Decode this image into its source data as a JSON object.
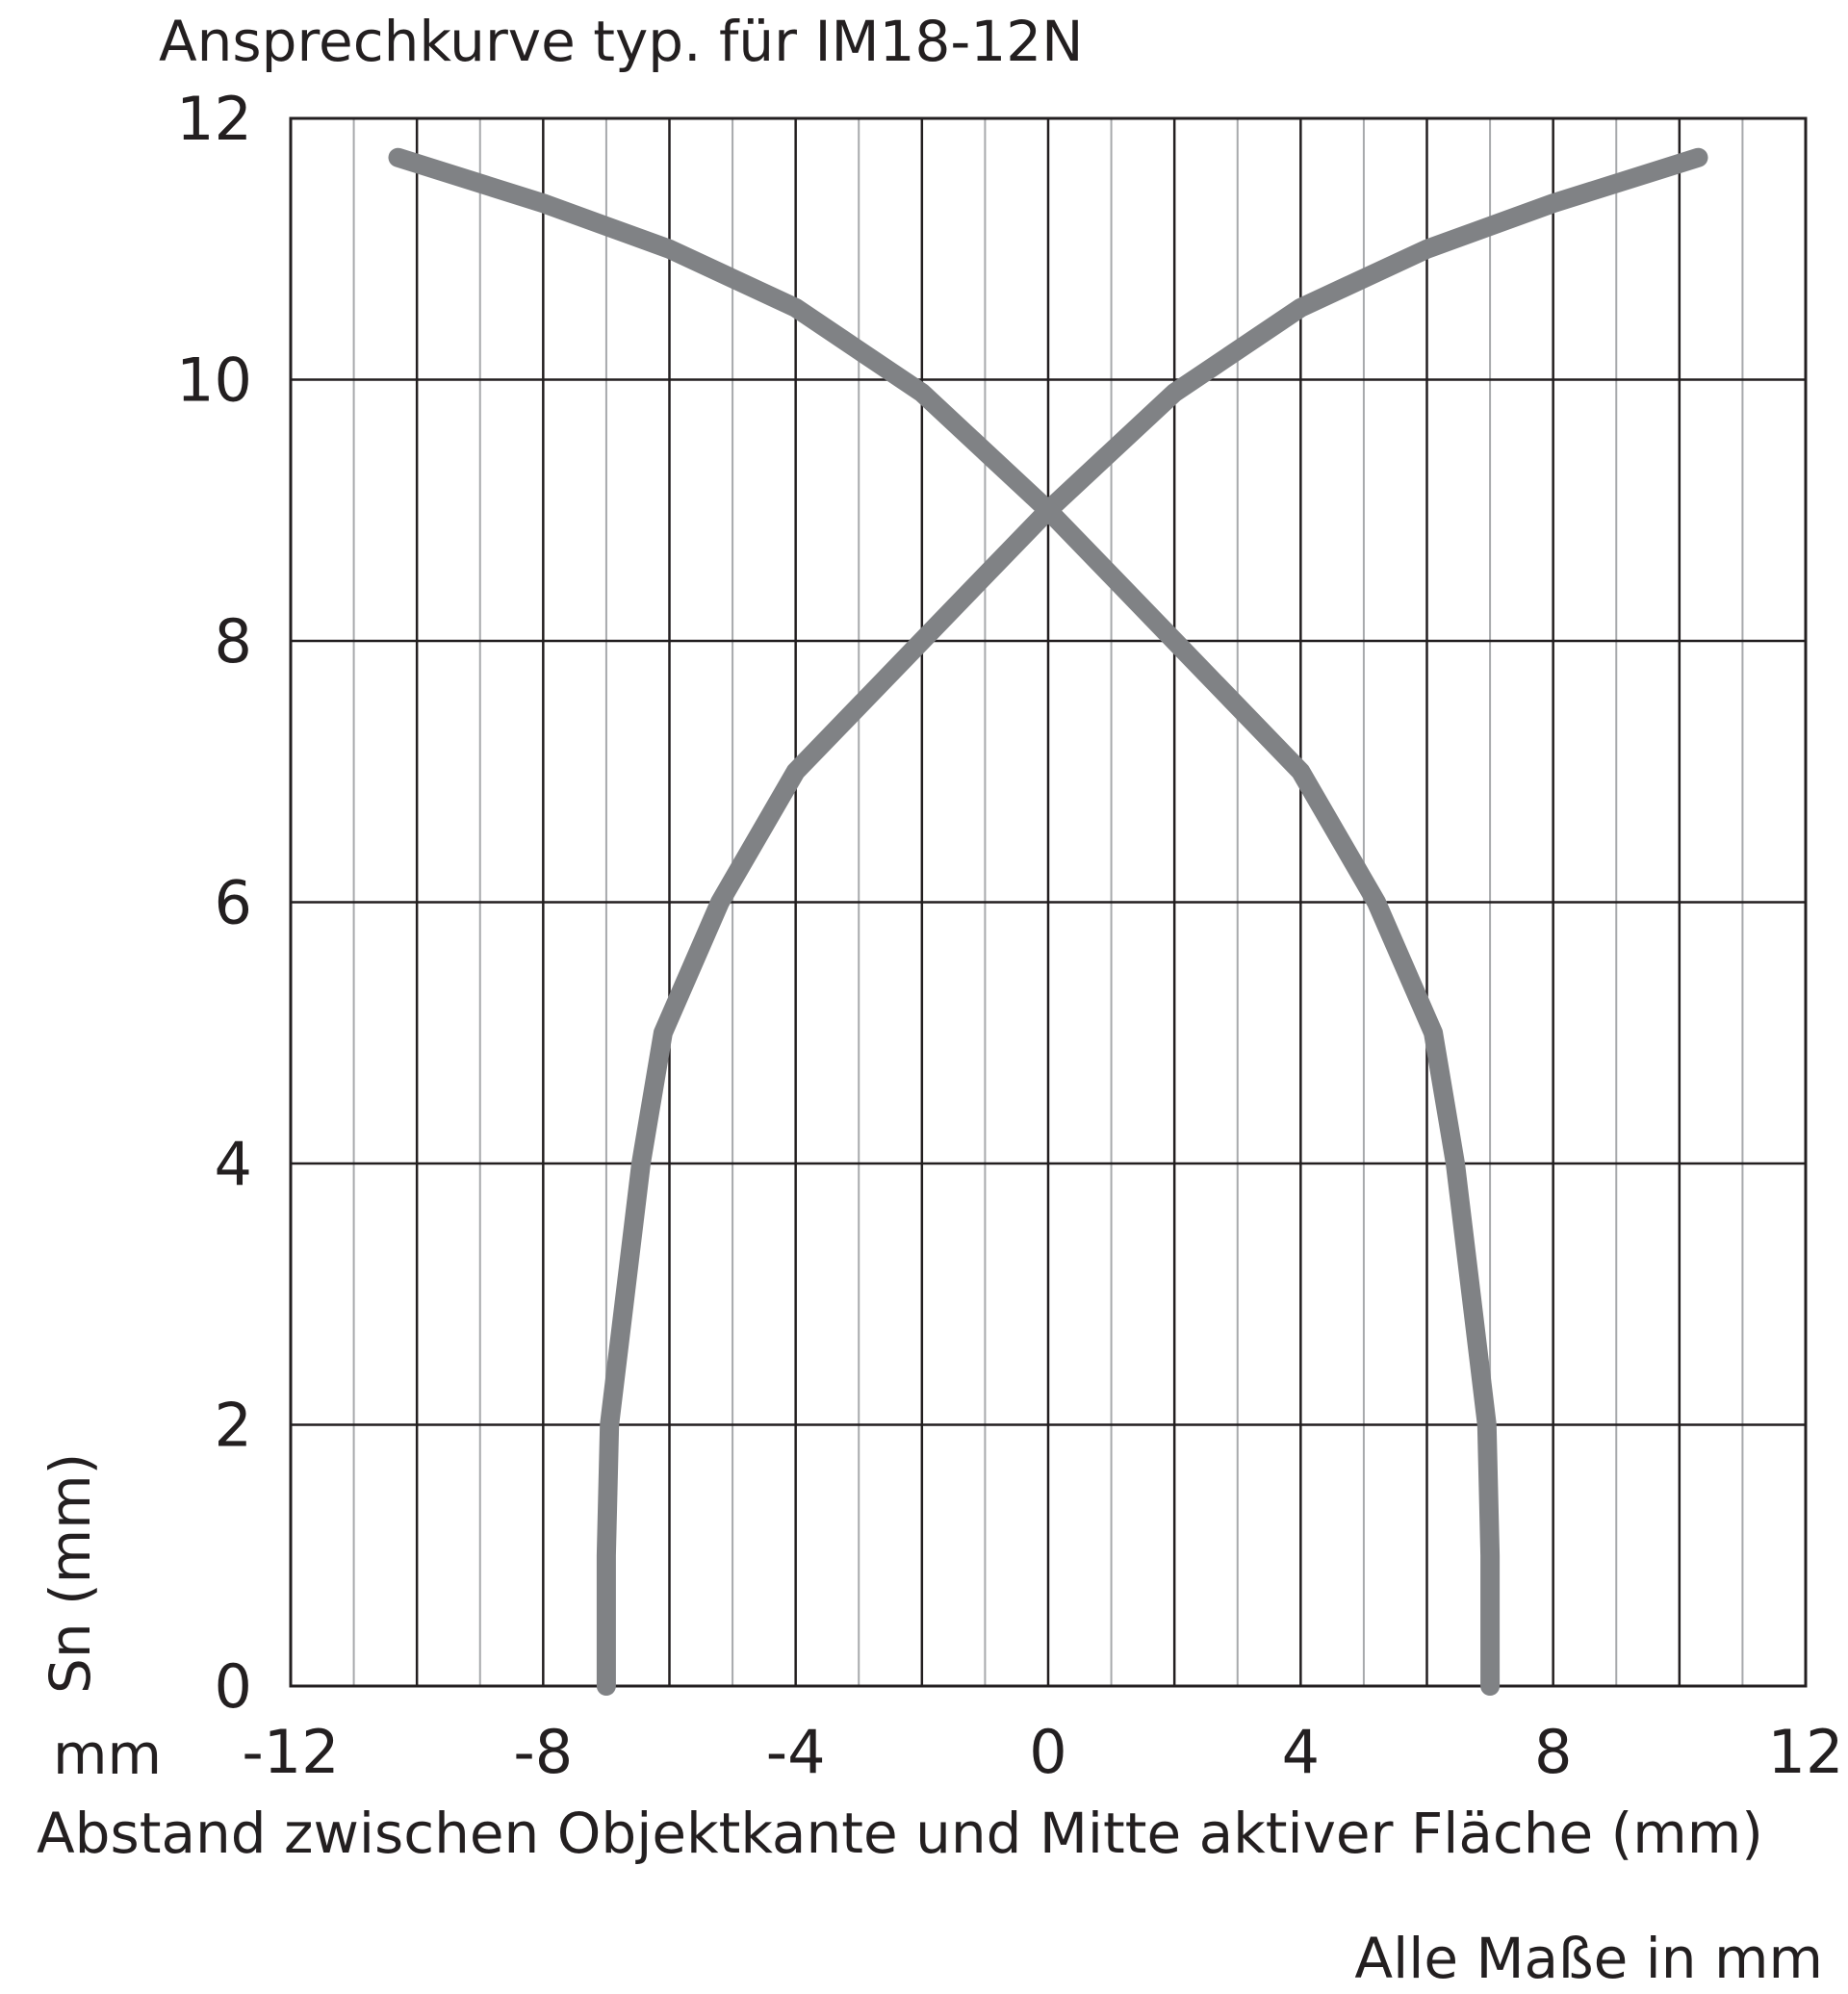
{
  "chart_data": {
    "type": "line",
    "title": "Ansprechkurve typ. für IM18-12N",
    "xlabel": "Abstand zwischen Objektkante und Mitte aktiver Fläche (mm)",
    "ylabel": "Sn (mm)",
    "x_unit_label": "mm",
    "note": "Alle Maße in mm",
    "xlim": [
      -12,
      12
    ],
    "ylim": [
      0,
      12
    ],
    "x_ticks": [
      "-12",
      "-8",
      "-4",
      "0",
      "4",
      "8",
      "12"
    ],
    "y_ticks": [
      "0",
      "2",
      "4",
      "6",
      "8",
      "10",
      "12"
    ],
    "grid": true,
    "line_color": "#808285",
    "series": [
      {
        "values": [
          [
            -7.0,
            0.0
          ],
          [
            -7.0,
            1.0
          ],
          [
            -6.95,
            2.0
          ],
          [
            -6.7,
            3.0
          ],
          [
            -6.45,
            4.0
          ],
          [
            -6.1,
            5.0
          ],
          [
            -5.2,
            6.0
          ],
          [
            -4.0,
            7.0
          ],
          [
            -2.0,
            8.0
          ],
          [
            -1.0,
            8.5
          ],
          [
            0.0,
            9.0
          ],
          [
            2.0,
            9.9
          ],
          [
            4.0,
            10.55
          ],
          [
            6.0,
            11.0
          ],
          [
            8.0,
            11.35
          ],
          [
            10.3,
            11.7
          ]
        ]
      },
      {
        "values": [
          [
            7.0,
            0.0
          ],
          [
            7.0,
            1.0
          ],
          [
            6.95,
            2.0
          ],
          [
            6.7,
            3.0
          ],
          [
            6.45,
            4.0
          ],
          [
            6.1,
            5.0
          ],
          [
            5.2,
            6.0
          ],
          [
            4.0,
            7.0
          ],
          [
            2.0,
            8.0
          ],
          [
            1.0,
            8.5
          ],
          [
            0.0,
            9.0
          ],
          [
            -2.0,
            9.9
          ],
          [
            -4.0,
            10.55
          ],
          [
            -6.0,
            11.0
          ],
          [
            -8.0,
            11.35
          ],
          [
            -10.3,
            11.7
          ]
        ]
      }
    ]
  }
}
